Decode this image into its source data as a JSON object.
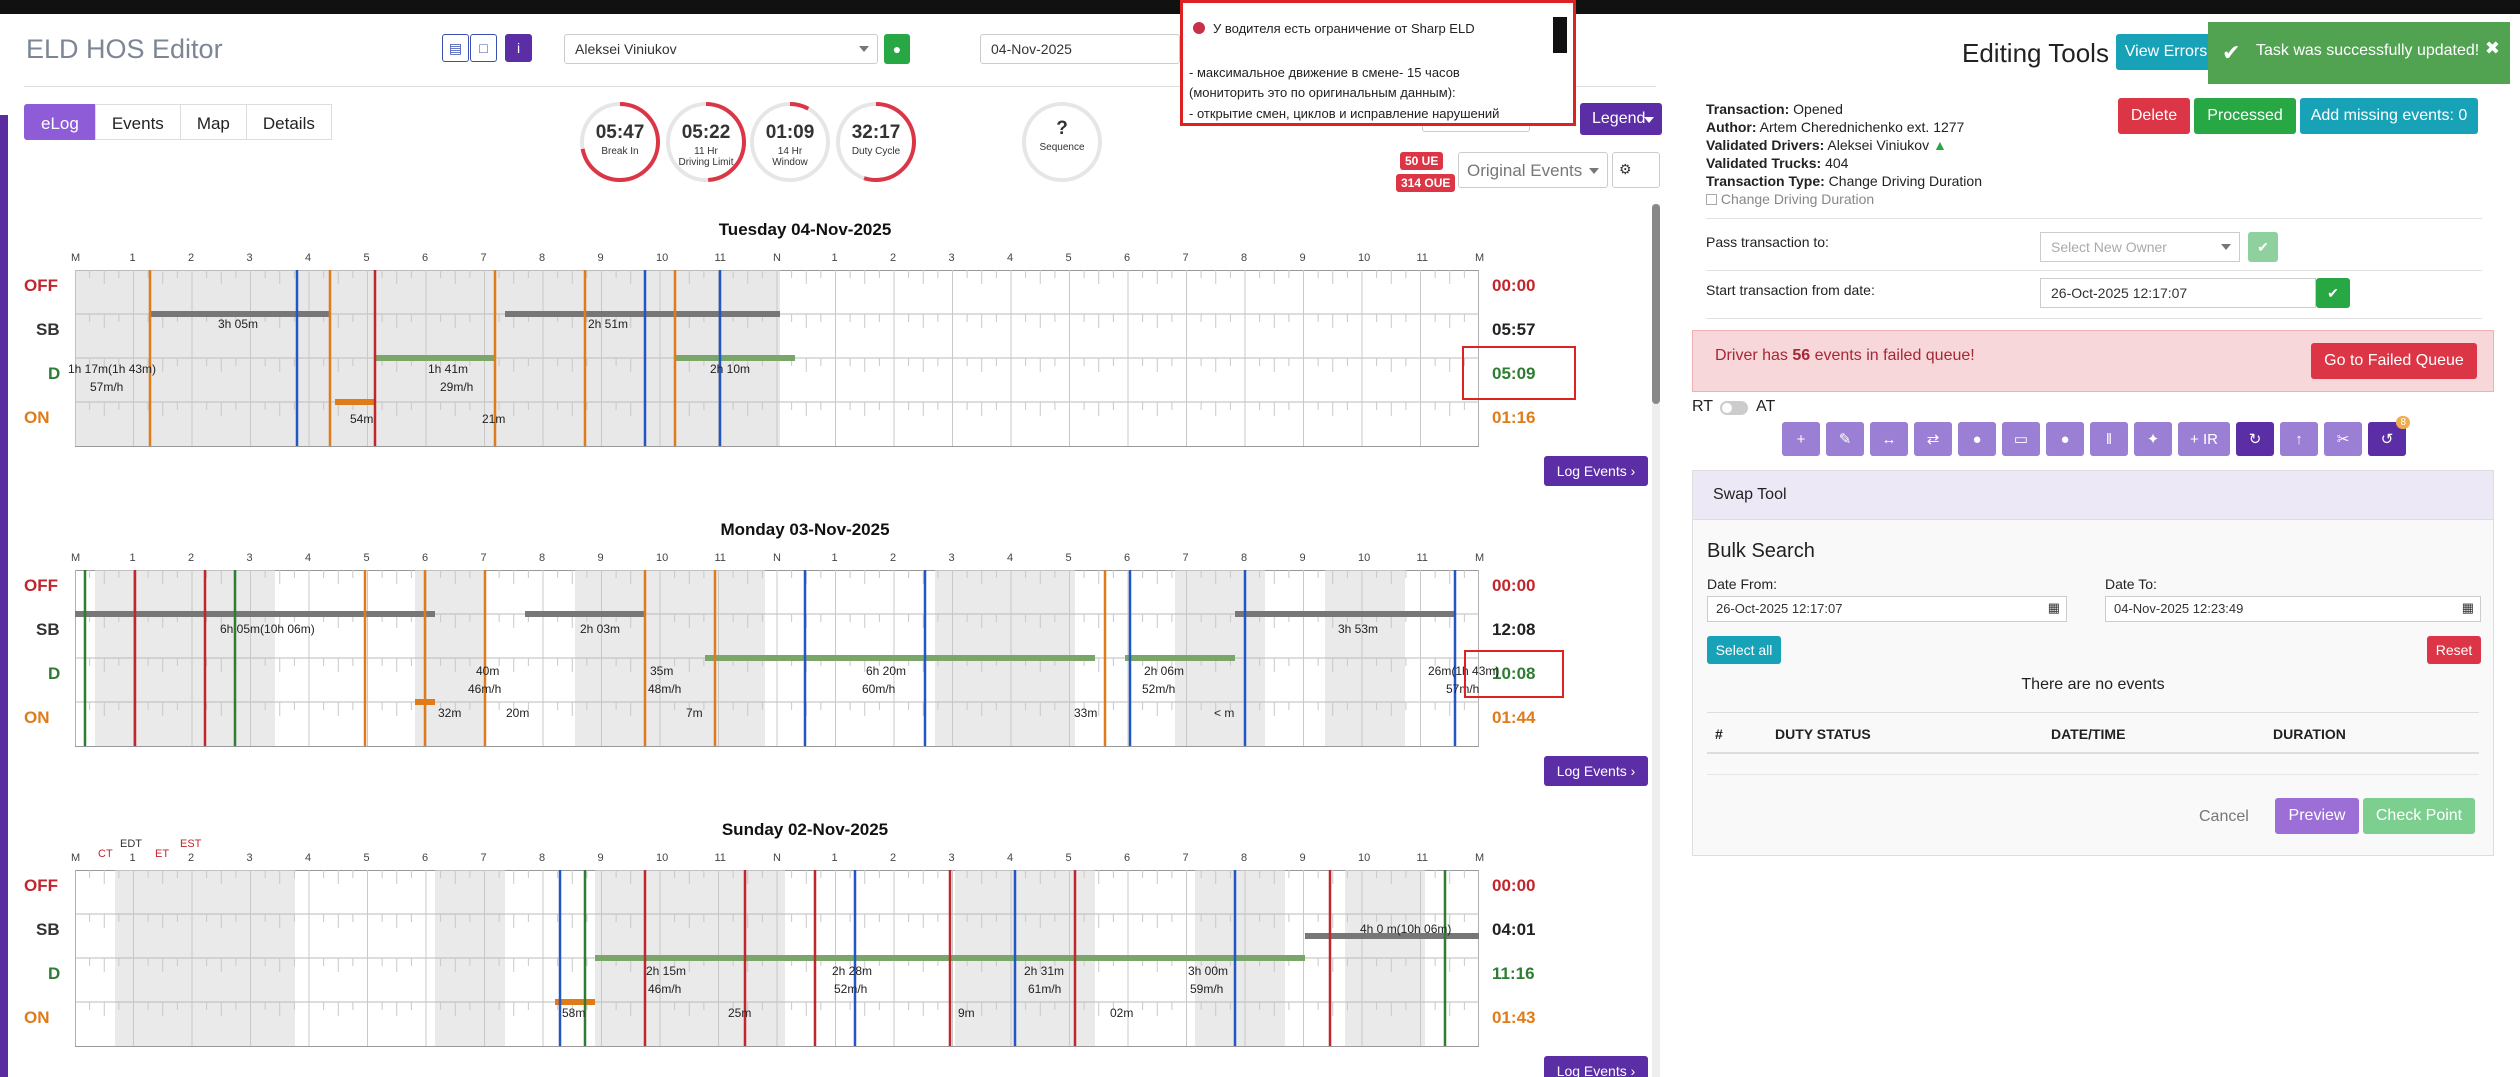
{
  "header": {
    "app_title": "ELD HOS Editor",
    "driver_select": "Aleksei Viniukov",
    "date_select": "04-Nov-2025",
    "legend_label": "Legend"
  },
  "tabs": [
    "eLog",
    "Events",
    "Map",
    "Details"
  ],
  "gauges": [
    {
      "value": "05:47",
      "label": "Break In",
      "label2": "",
      "fraction": 0.72
    },
    {
      "value": "05:22",
      "label": "11 Hr",
      "label2": "Driving Limit",
      "fraction": 0.49
    },
    {
      "value": "01:09",
      "label": "14 Hr",
      "label2": "Window",
      "fraction": 0.08
    },
    {
      "value": "32:17",
      "label": "Duty Cycle",
      "label2": "",
      "fraction": 0.55
    },
    {
      "value": "?",
      "label": "Sequence",
      "label2": "",
      "fraction": 0
    }
  ],
  "badges": {
    "ue": "50 UE",
    "oue": "314 OUE"
  },
  "events_select": "Original Events",
  "chart_data": {
    "type": "table",
    "hour_labels": [
      "M",
      "1",
      "2",
      "3",
      "4",
      "5",
      "6",
      "7",
      "8",
      "9",
      "10",
      "11",
      "N",
      "1",
      "2",
      "3",
      "4",
      "5",
      "6",
      "7",
      "8",
      "9",
      "10",
      "11",
      "M"
    ],
    "status_rows": [
      "OFF",
      "SB",
      "D",
      "ON"
    ],
    "days": [
      {
        "title": "Tuesday 04-Nov-2025",
        "totals": {
          "off": "00:00",
          "sb": "05:57",
          "d": "05:09",
          "on": "01:16"
        },
        "annotations": [
          "3h 05m",
          "2h 51m",
          "1h 17m(1h 43m)",
          "57m/h",
          "1h 41m",
          "29m/h",
          "2h 10m",
          "54m",
          "21m"
        ]
      },
      {
        "title": "Monday 03-Nov-2025",
        "totals": {
          "off": "00:00",
          "sb": "12:08",
          "d": "10:08",
          "on": "01:44"
        },
        "annotations": [
          "6h 05m(10h 06m)",
          "2h 03m",
          "3h 53m",
          "40m",
          "46m/h",
          "35m",
          "48m/h",
          "6h 20m",
          "60m/h",
          "2h 06m",
          "52m/h",
          "26m(1h 43m)",
          "57m/h",
          "32m",
          "20m",
          "7m",
          "33m",
          "< m"
        ]
      },
      {
        "title": "Sunday 02-Nov-2025",
        "totals": {
          "off": "00:00",
          "sb": "04:01",
          "d": "11:16",
          "on": "01:43"
        },
        "annotations": [
          "4h 0 m(10h 06m)",
          "2h 15m",
          "46m/h",
          "2h 28m",
          "52m/h",
          "2h 31m",
          "61m/h",
          "3h 00m",
          "59m/h",
          "58m",
          "25m",
          "9m",
          "02m"
        ],
        "tz_labels": [
          "CT",
          "EDT",
          "ET",
          "EST"
        ]
      }
    ]
  },
  "log_events_label": "Log Events",
  "popup": {
    "title": "У водителя есть ограничение от Sharp ELD",
    "line1": "- максимальное движение в смене- 15  часов",
    "line2": "(мониторить это по оригинальным данным):",
    "line3": "- открытие смен, циклов и исправление нарушений"
  },
  "toast": "Task was successfully updated!",
  "right": {
    "title": "Editing Tools",
    "view_errors": "View Errors",
    "transaction_label": "Transaction:",
    "transaction_value": "Opened",
    "author_label": "Author:",
    "author_value": "Artem Cherednichenko ext. 1277",
    "drivers_label": "Validated Drivers:",
    "drivers_value": "Aleksei Viniukov",
    "trucks_label": "Validated Trucks:",
    "trucks_value": "404",
    "type_label": "Transaction Type:",
    "type_value": "Change Driving Duration",
    "checkbox_label": "Change Driving Duration",
    "delete": "Delete",
    "processed": "Processed",
    "add_missing": "Add missing events: 0",
    "pass_label": "Pass transaction to:",
    "owner_placeholder": "Select New Owner",
    "start_label": "Start transaction from date:",
    "start_value": "26-Oct-2025 12:17:07",
    "alert_pre": "Driver has ",
    "alert_count": "56",
    "alert_post": " events in failed queue!",
    "failed_queue": "Go to Failed Queue",
    "rt": "RT",
    "at": "AT",
    "toolbar_ir": "+ IR",
    "toolbar_badge": "8",
    "swap_title": "Swap Tool",
    "bulk_title": "Bulk Search",
    "date_from_label": "Date From:",
    "date_from": "26-Oct-2025 12:17:07",
    "date_to_label": "Date To:",
    "date_to": "04-Nov-2025 12:23:49",
    "select_all": "Select all",
    "reset": "Reset",
    "no_events": "There are no events",
    "cols": [
      "#",
      "DUTY STATUS",
      "DATE/TIME",
      "DURATION"
    ],
    "cancel": "Cancel",
    "preview": "Preview",
    "checkpoint": "Check Point"
  }
}
